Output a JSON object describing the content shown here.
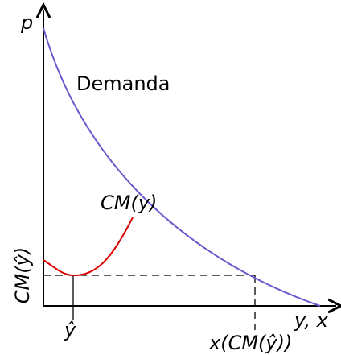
{
  "axes": {
    "y_label": "p",
    "x_label": "y, x"
  },
  "curves": {
    "demand": "Demanda",
    "cost": "CM(y)"
  },
  "marks": {
    "y_hat": "ŷ",
    "cm_y_hat": "CM(ŷ)",
    "x_cm": "x(CM(ŷ))"
  }
}
